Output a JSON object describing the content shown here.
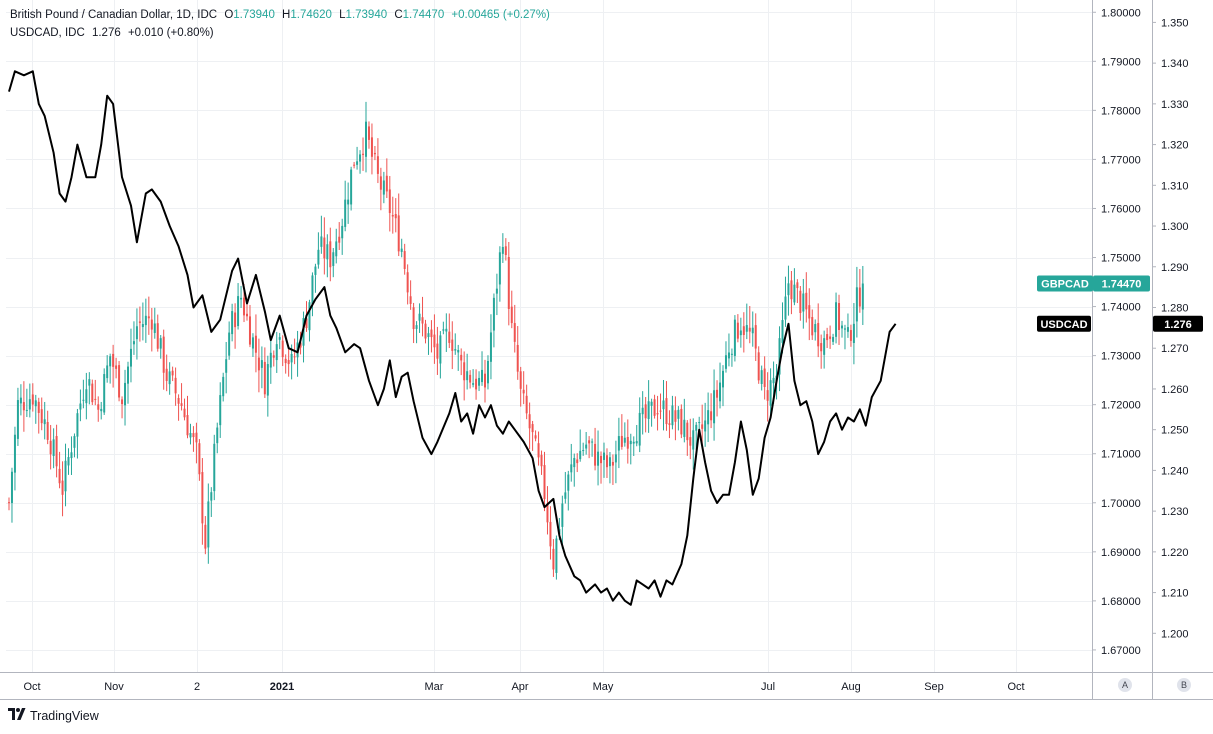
{
  "legend": {
    "main_title": "British Pound / Canadian Dollar, 1D, IDC",
    "o_label": "O",
    "o_value": "1.73940",
    "h_label": "H",
    "h_value": "1.74620",
    "l_label": "L",
    "l_value": "1.73940",
    "c_label": "C",
    "c_value": "1.74470",
    "change": "+0.00465 (+0.27%)",
    "compare_title": "USDCAD, IDC",
    "compare_value": "1.276",
    "compare_change": "+0.010 (+0.80%)"
  },
  "branding": {
    "logo_text": "TradingView"
  },
  "scale_buttons": {
    "a": "A",
    "b": "B"
  },
  "colors": {
    "up": "#26a69a",
    "down": "#ef5350",
    "compare_line": "#000000",
    "grid": "#eef0f3",
    "axis": "#b2b5be"
  },
  "chart_data": {
    "type": "candlestick",
    "xlabels": [
      "Oct",
      "Nov",
      "2",
      "2021",
      "Mar",
      "Apr",
      "May",
      "Jul",
      "Aug",
      "Sep",
      "Oct"
    ],
    "ylabel_right_primary_ticks": [
      "1.80000",
      "1.79000",
      "1.78000",
      "1.77000",
      "1.76000",
      "1.75000",
      "1.74000",
      "1.73000",
      "1.72000",
      "1.71000",
      "1.70000",
      "1.69000",
      "1.68000",
      "1.67000"
    ],
    "ylabel_right_secondary_ticks": [
      "1.350",
      "1.340",
      "1.330",
      "1.320",
      "1.310",
      "1.300",
      "1.290",
      "1.280",
      "1.270",
      "1.260",
      "1.250",
      "1.240",
      "1.230",
      "1.220",
      "1.210",
      "1.200"
    ],
    "ylim_primary": [
      1.6655,
      1.8025
    ],
    "ylim_secondary": [
      1.1905,
      1.3555
    ],
    "series": [
      {
        "name": "GBPCAD",
        "axis_label": "1.74470",
        "type": "candlestick",
        "close_anchors": [
          [
            0,
            1.7
          ],
          [
            3,
            1.72
          ],
          [
            8,
            1.722
          ],
          [
            13,
            1.715
          ],
          [
            18,
            1.703
          ],
          [
            22,
            1.715
          ],
          [
            26,
            1.726
          ],
          [
            30,
            1.719
          ],
          [
            34,
            1.73
          ],
          [
            38,
            1.722
          ],
          [
            43,
            1.736
          ],
          [
            48,
            1.738
          ],
          [
            53,
            1.726
          ],
          [
            58,
            1.72
          ],
          [
            63,
            1.71
          ],
          [
            66,
            1.692
          ],
          [
            70,
            1.715
          ],
          [
            74,
            1.735
          ],
          [
            78,
            1.742
          ],
          [
            82,
            1.733
          ],
          [
            86,
            1.725
          ],
          [
            90,
            1.735
          ],
          [
            95,
            1.728
          ],
          [
            100,
            1.738
          ],
          [
            104,
            1.752
          ],
          [
            108,
            1.75
          ],
          [
            112,
            1.758
          ],
          [
            116,
            1.77
          ],
          [
            120,
            1.775
          ],
          [
            124,
            1.766
          ],
          [
            128,
            1.76
          ],
          [
            132,
            1.752
          ],
          [
            136,
            1.738
          ],
          [
            140,
            1.735
          ],
          [
            144,
            1.73
          ],
          [
            148,
            1.735
          ],
          [
            152,
            1.728
          ],
          [
            156,
            1.725
          ],
          [
            160,
            1.724
          ],
          [
            163,
            1.74
          ],
          [
            166,
            1.755
          ],
          [
            169,
            1.735
          ],
          [
            172,
            1.722
          ],
          [
            176,
            1.713
          ],
          [
            180,
            1.702
          ],
          [
            183,
            1.688
          ],
          [
            186,
            1.7
          ],
          [
            190,
            1.709
          ],
          [
            194,
            1.712
          ],
          [
            198,
            1.709
          ],
          [
            202,
            1.707
          ],
          [
            206,
            1.713
          ],
          [
            210,
            1.715
          ],
          [
            214,
            1.717
          ],
          [
            218,
            1.72
          ],
          [
            222,
            1.718
          ],
          [
            226,
            1.716
          ],
          [
            230,
            1.712
          ],
          [
            234,
            1.716
          ],
          [
            238,
            1.722
          ],
          [
            242,
            1.732
          ],
          [
            246,
            1.737
          ],
          [
            250,
            1.733
          ],
          [
            254,
            1.722
          ],
          [
            258,
            1.726
          ],
          [
            262,
            1.745
          ],
          [
            266,
            1.741
          ],
          [
            270,
            1.736
          ],
          [
            274,
            1.733
          ],
          [
            278,
            1.738
          ],
          [
            282,
            1.733
          ],
          [
            285,
            1.741
          ],
          [
            287,
            1.7447
          ]
        ]
      },
      {
        "name": "USDCAD",
        "axis_label": "1.276",
        "type": "line",
        "close_anchors": [
          [
            0,
            1.333
          ],
          [
            2,
            1.338
          ],
          [
            5,
            1.337
          ],
          [
            8,
            1.338
          ],
          [
            10,
            1.33
          ],
          [
            12,
            1.327
          ],
          [
            15,
            1.318
          ],
          [
            17,
            1.308
          ],
          [
            19,
            1.306
          ],
          [
            21,
            1.312
          ],
          [
            23,
            1.32
          ],
          [
            26,
            1.312
          ],
          [
            29,
            1.312
          ],
          [
            31,
            1.32
          ],
          [
            33,
            1.332
          ],
          [
            35,
            1.33
          ],
          [
            38,
            1.312
          ],
          [
            41,
            1.305
          ],
          [
            43,
            1.296
          ],
          [
            46,
            1.308
          ],
          [
            48,
            1.309
          ],
          [
            51,
            1.306
          ],
          [
            54,
            1.3
          ],
          [
            57,
            1.295
          ],
          [
            60,
            1.288
          ],
          [
            62,
            1.28
          ],
          [
            65,
            1.283
          ],
          [
            68,
            1.274
          ],
          [
            71,
            1.277
          ],
          [
            75,
            1.289
          ],
          [
            77,
            1.292
          ],
          [
            80,
            1.281
          ],
          [
            83,
            1.288
          ],
          [
            86,
            1.279
          ],
          [
            88,
            1.272
          ],
          [
            91,
            1.278
          ],
          [
            94,
            1.27
          ],
          [
            97,
            1.269
          ],
          [
            100,
            1.278
          ],
          [
            103,
            1.282
          ],
          [
            106,
            1.285
          ],
          [
            108,
            1.278
          ],
          [
            110,
            1.275
          ],
          [
            113,
            1.269
          ],
          [
            116,
            1.271
          ],
          [
            118,
            1.27
          ],
          [
            121,
            1.262
          ],
          [
            124,
            1.256
          ],
          [
            126,
            1.26
          ],
          [
            128,
            1.267
          ],
          [
            130,
            1.258
          ],
          [
            132,
            1.263
          ],
          [
            134,
            1.264
          ],
          [
            136,
            1.257
          ],
          [
            139,
            1.248
          ],
          [
            142,
            1.244
          ],
          [
            144,
            1.247
          ],
          [
            148,
            1.254
          ],
          [
            150,
            1.259
          ],
          [
            152,
            1.252
          ],
          [
            154,
            1.254
          ],
          [
            156,
            1.249
          ],
          [
            158,
            1.256
          ],
          [
            160,
            1.253
          ],
          [
            162,
            1.256
          ],
          [
            164,
            1.251
          ],
          [
            166,
            1.249
          ],
          [
            168,
            1.252
          ],
          [
            170,
            1.25
          ],
          [
            173,
            1.247
          ],
          [
            176,
            1.243
          ],
          [
            178,
            1.235
          ],
          [
            180,
            1.231
          ],
          [
            183,
            1.233
          ],
          [
            185,
            1.224
          ],
          [
            187,
            1.219
          ],
          [
            190,
            1.214
          ],
          [
            192,
            1.213
          ],
          [
            194,
            1.21
          ],
          [
            197,
            1.212
          ],
          [
            199,
            1.21
          ],
          [
            201,
            1.211
          ],
          [
            203,
            1.208
          ],
          [
            205,
            1.21
          ],
          [
            207,
            1.208
          ],
          [
            209,
            1.207
          ],
          [
            211,
            1.213
          ],
          [
            213,
            1.212
          ],
          [
            215,
            1.211
          ],
          [
            217,
            1.213
          ],
          [
            219,
            1.209
          ],
          [
            221,
            1.213
          ],
          [
            223,
            1.212
          ],
          [
            226,
            1.217
          ],
          [
            228,
            1.224
          ],
          [
            230,
            1.238
          ],
          [
            232,
            1.25
          ],
          [
            234,
            1.242
          ],
          [
            236,
            1.235
          ],
          [
            238,
            1.232
          ],
          [
            240,
            1.234
          ],
          [
            242,
            1.234
          ],
          [
            244,
            1.242
          ],
          [
            246,
            1.252
          ],
          [
            248,
            1.245
          ],
          [
            250,
            1.234
          ],
          [
            252,
            1.238
          ],
          [
            254,
            1.248
          ],
          [
            256,
            1.253
          ],
          [
            258,
            1.262
          ],
          [
            260,
            1.27
          ],
          [
            262,
            1.276
          ],
          [
            264,
            1.262
          ],
          [
            266,
            1.256
          ],
          [
            268,
            1.257
          ],
          [
            270,
            1.252
          ],
          [
            272,
            1.244
          ],
          [
            274,
            1.247
          ],
          [
            276,
            1.252
          ],
          [
            278,
            1.254
          ],
          [
            280,
            1.25
          ],
          [
            282,
            1.253
          ],
          [
            284,
            1.252
          ],
          [
            286,
            1.255
          ],
          [
            288,
            1.251
          ],
          [
            290,
            1.258
          ],
          [
            293,
            1.262
          ],
          [
            296,
            1.274
          ],
          [
            298,
            1.276
          ]
        ]
      }
    ],
    "grid": true,
    "legend_position": "top-left"
  }
}
